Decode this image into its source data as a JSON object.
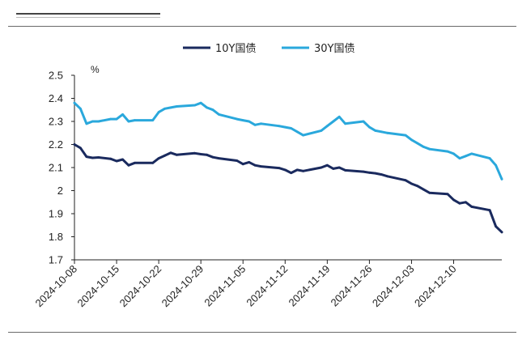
{
  "chart_data": {
    "type": "line",
    "ylabel": "%",
    "ylim": [
      1.7,
      2.5
    ],
    "yticks": [
      "2.5",
      "2.4",
      "2.3",
      "2.2",
      "2.1",
      "2",
      "1.9",
      "1.8",
      "1.7"
    ],
    "xticks": [
      "2024-10-08",
      "2024-10-15",
      "2024-10-22",
      "2024-10-29",
      "2024-11-05",
      "2024-11-12",
      "2024-11-19",
      "2024-11-26",
      "2024-12-03",
      "2024-12-10"
    ],
    "grid": false,
    "legend_position": "top-center",
    "x": [
      "2024-10-08",
      "2024-10-09",
      "2024-10-10",
      "2024-10-11",
      "2024-10-12",
      "2024-10-14",
      "2024-10-15",
      "2024-10-16",
      "2024-10-17",
      "2024-10-18",
      "2024-10-21",
      "2024-10-22",
      "2024-10-23",
      "2024-10-24",
      "2024-10-25",
      "2024-10-28",
      "2024-10-29",
      "2024-10-30",
      "2024-10-31",
      "2024-11-01",
      "2024-11-04",
      "2024-11-05",
      "2024-11-06",
      "2024-11-07",
      "2024-11-08",
      "2024-11-11",
      "2024-11-12",
      "2024-11-13",
      "2024-11-14",
      "2024-11-15",
      "2024-11-18",
      "2024-11-19",
      "2024-11-20",
      "2024-11-21",
      "2024-11-22",
      "2024-11-25",
      "2024-11-26",
      "2024-11-27",
      "2024-11-28",
      "2024-11-29",
      "2024-12-02",
      "2024-12-03",
      "2024-12-04",
      "2024-12-05",
      "2024-12-06",
      "2024-12-09",
      "2024-12-10",
      "2024-12-11",
      "2024-12-12",
      "2024-12-13",
      "2024-12-16",
      "2024-12-17",
      "2024-12-18"
    ],
    "series": [
      {
        "name": "10Y国债",
        "color": "#1a2a5e",
        "values": [
          2.2,
          2.185,
          2.147,
          2.142,
          2.144,
          2.138,
          2.128,
          2.135,
          2.11,
          2.12,
          2.12,
          2.14,
          2.152,
          2.164,
          2.155,
          2.162,
          2.158,
          2.155,
          2.145,
          2.14,
          2.13,
          2.115,
          2.123,
          2.11,
          2.105,
          2.098,
          2.09,
          2.077,
          2.09,
          2.085,
          2.1,
          2.11,
          2.095,
          2.1,
          2.088,
          2.082,
          2.078,
          2.075,
          2.07,
          2.062,
          2.045,
          2.03,
          2.02,
          2.005,
          1.99,
          1.985,
          1.96,
          1.945,
          1.95,
          1.93,
          1.915,
          1.845,
          1.82
        ]
      },
      {
        "name": "30Y国债",
        "color": "#2aa8dc",
        "values": [
          2.38,
          2.355,
          2.29,
          2.3,
          2.3,
          2.31,
          2.31,
          2.33,
          2.3,
          2.305,
          2.305,
          2.34,
          2.355,
          2.36,
          2.365,
          2.37,
          2.38,
          2.36,
          2.35,
          2.33,
          2.31,
          2.305,
          2.3,
          2.285,
          2.29,
          2.28,
          2.275,
          2.27,
          2.255,
          2.24,
          2.26,
          2.28,
          2.3,
          2.32,
          2.29,
          2.3,
          2.275,
          2.26,
          2.255,
          2.25,
          2.24,
          2.22,
          2.205,
          2.19,
          2.18,
          2.17,
          2.16,
          2.14,
          2.15,
          2.16,
          2.14,
          2.11,
          2.05
        ]
      }
    ]
  }
}
